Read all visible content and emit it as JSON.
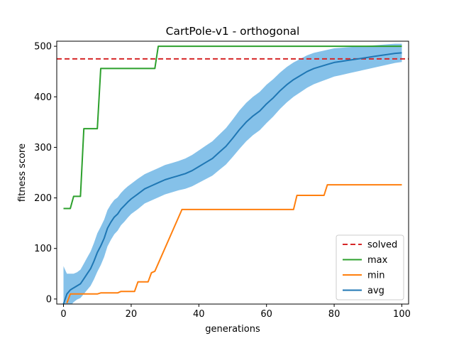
{
  "chart_data": {
    "type": "line",
    "title": "CartPole-v1 - orthogonal",
    "xlabel": "generations",
    "ylabel": "fitness score",
    "xlim": [
      -2,
      102
    ],
    "ylim": [
      -10,
      510
    ],
    "xticks": [
      0,
      20,
      40,
      60,
      80,
      100
    ],
    "yticks": [
      0,
      100,
      200,
      300,
      400,
      500
    ],
    "legend_position": "lower-right",
    "solved": {
      "name": "solved",
      "value": 475,
      "color": "#d62728",
      "style": "dashed"
    },
    "series": [
      {
        "name": "max",
        "color": "#2ca02c",
        "step": true,
        "x": [
          0,
          2,
          3,
          5,
          6,
          10,
          11,
          27,
          28,
          100
        ],
        "y": [
          179,
          179,
          203,
          203,
          337,
          337,
          456,
          456,
          500,
          500
        ]
      },
      {
        "name": "min",
        "color": "#ff7f0e",
        "step": true,
        "x": [
          1,
          2,
          3,
          10,
          11,
          16,
          17,
          21,
          22,
          25,
          26,
          27,
          35,
          68,
          69,
          77,
          78,
          100
        ],
        "y": [
          -8,
          10,
          10,
          10,
          12,
          12,
          15,
          15,
          34,
          34,
          52,
          55,
          177,
          177,
          205,
          205,
          226,
          226
        ]
      },
      {
        "name": "avg",
        "color": "#1f77b4",
        "band_color": "#85c1e9",
        "x": [
          0,
          1,
          2,
          3,
          4,
          5,
          6,
          7,
          8,
          9,
          10,
          11,
          12,
          13,
          14,
          15,
          16,
          17,
          18,
          19,
          20,
          22,
          24,
          26,
          28,
          30,
          32,
          34,
          36,
          38,
          40,
          42,
          44,
          46,
          48,
          50,
          52,
          54,
          56,
          58,
          60,
          62,
          64,
          66,
          68,
          70,
          72,
          74,
          76,
          78,
          80,
          82,
          84,
          86,
          88,
          90,
          92,
          94,
          96,
          98,
          100
        ],
        "y": [
          -10,
          10,
          18,
          22,
          26,
          30,
          40,
          50,
          60,
          75,
          92,
          105,
          120,
          140,
          152,
          162,
          168,
          178,
          185,
          192,
          198,
          208,
          218,
          224,
          230,
          236,
          240,
          244,
          248,
          254,
          262,
          270,
          278,
          290,
          302,
          318,
          335,
          350,
          362,
          372,
          386,
          398,
          412,
          424,
          434,
          442,
          450,
          456,
          460,
          464,
          468,
          470,
          472,
          474,
          476,
          478,
          480,
          482,
          484,
          486,
          487
        ],
        "std": [
          75,
          40,
          32,
          28,
          27,
          28,
          30,
          32,
          34,
          36,
          38,
          38,
          37,
          36,
          35,
          34,
          33,
          32,
          32,
          31,
          30,
          30,
          29,
          29,
          29,
          29,
          29,
          29,
          30,
          31,
          32,
          33,
          34,
          35,
          36,
          37,
          38,
          38,
          38,
          38,
          38,
          37,
          36,
          35,
          34,
          33,
          32,
          31,
          30,
          29,
          28,
          27,
          26,
          25,
          24,
          23,
          22,
          21,
          20,
          19,
          18
        ]
      }
    ]
  }
}
